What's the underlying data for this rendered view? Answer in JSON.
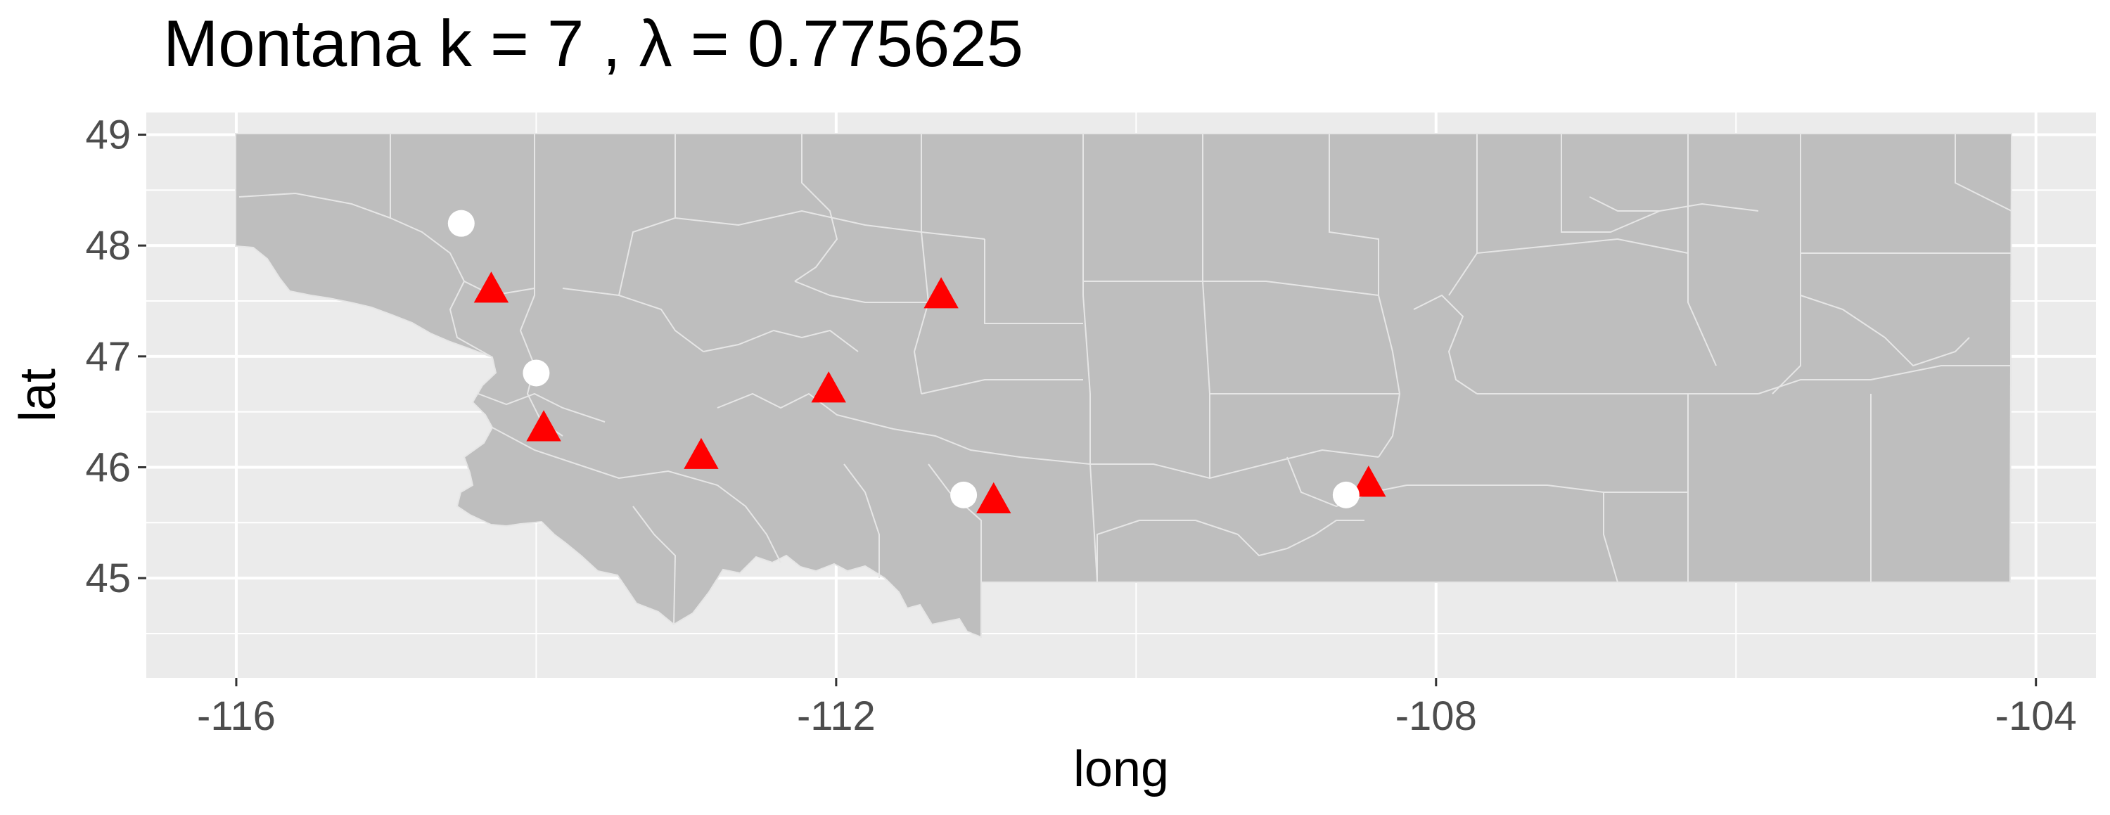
{
  "title": "Montana  k =  7 ,  λ  =  0.775625",
  "colors": {
    "panel_background": "#ebebeb",
    "grid": "#ffffff",
    "state_fill": "#bebebe",
    "county_border": "#e6e6e6",
    "triangle": "#ff0000",
    "circle": "#ffffff"
  },
  "chart_data": {
    "type": "scatter",
    "xlabel": "long",
    "ylabel": "lat",
    "xlim": [
      -116.6,
      -103.6
    ],
    "ylim": [
      44.1,
      49.2
    ],
    "x_ticks": [
      -116,
      -112,
      -108,
      -104
    ],
    "y_ticks": [
      45,
      46,
      47,
      48,
      49
    ],
    "x_tick_labels": [
      "-116",
      "-112",
      "-108",
      "-104"
    ],
    "y_tick_labels": [
      "45",
      "46",
      "47",
      "48",
      "49"
    ],
    "grid": true,
    "basemap": "Montana county boundaries",
    "series": [
      {
        "marker": "triangle",
        "color": "#ff0000",
        "points": [
          {
            "long": -114.3,
            "lat": 47.6
          },
          {
            "long": -111.3,
            "lat": 47.55
          },
          {
            "long": -112.05,
            "lat": 46.7
          },
          {
            "long": -113.95,
            "lat": 46.35
          },
          {
            "long": -112.9,
            "lat": 46.1
          },
          {
            "long": -110.95,
            "lat": 45.7
          },
          {
            "long": -108.45,
            "lat": 45.85
          }
        ]
      },
      {
        "marker": "circle",
        "color": "#ffffff",
        "points": [
          {
            "long": -114.5,
            "lat": 48.2
          },
          {
            "long": -114.0,
            "lat": 46.85
          },
          {
            "long": -111.15,
            "lat": 45.75
          },
          {
            "long": -108.6,
            "lat": 45.75
          }
        ]
      }
    ]
  }
}
